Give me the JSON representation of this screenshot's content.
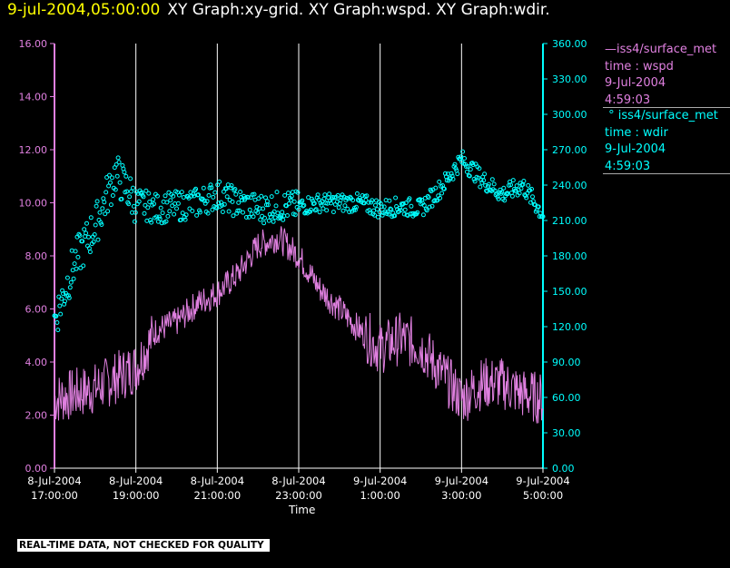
{
  "header": {
    "timestamp": "9-jul-2004,05:00:00",
    "titles": "XY Graph:xy-grid.  XY Graph:wspd.  XY Graph:wdir."
  },
  "legend": {
    "wspd": {
      "line1": "iss4/surface_met",
      "line2": "time : wspd",
      "line3": "9-Jul-2004",
      "line4": "4:59:03"
    },
    "wdir": {
      "line1": "iss4/surface_met",
      "line2": "time : wdir",
      "line3": "9-Jul-2004",
      "line4": "4:59:03"
    }
  },
  "quality_note": "REAL-TIME DATA, NOT CHECKED FOR QUALITY",
  "colors": {
    "wspd": "#e080e0",
    "wdir": "#00ffff",
    "grid": "#ffffff",
    "header_timestamp": "#ffff00"
  },
  "chart_data": {
    "type": "line",
    "xlabel": "Time",
    "x_ticks": [
      {
        "date": "8-Jul-2004",
        "time": "17:00:00",
        "hours": 0
      },
      {
        "date": "8-Jul-2004",
        "time": "19:00:00",
        "hours": 2
      },
      {
        "date": "8-Jul-2004",
        "time": "21:00:00",
        "hours": 4
      },
      {
        "date": "8-Jul-2004",
        "time": "23:00:00",
        "hours": 6
      },
      {
        "date": "9-Jul-2004",
        "time": "1:00:00",
        "hours": 8
      },
      {
        "date": "9-Jul-2004",
        "time": "3:00:00",
        "hours": 10
      },
      {
        "date": "9-Jul-2004",
        "time": "5:00:00",
        "hours": 12
      }
    ],
    "xlim": [
      "8-Jul-2004 17:00:00",
      "9-Jul-2004 05:00:00"
    ],
    "y_left": {
      "ylim": [
        0,
        16
      ],
      "ticks": [
        "0.00",
        "2.00",
        "4.00",
        "6.00",
        "8.00",
        "10.00",
        "12.00",
        "14.00",
        "16.00"
      ]
    },
    "y_right": {
      "ylim": [
        0,
        360
      ],
      "ticks": [
        "0.00",
        "30.00",
        "60.00",
        "90.00",
        "120.00",
        "150.00",
        "180.00",
        "210.00",
        "240.00",
        "270.00",
        "300.00",
        "330.00",
        "360.00"
      ]
    },
    "grid": "vertical",
    "series": [
      {
        "name": "iss4/surface_met time : wspd",
        "axis": "left",
        "style": "line",
        "x": [
          "8-Jul-2004 17:00",
          "8-Jul-2004 17:30",
          "8-Jul-2004 18:00",
          "8-Jul-2004 18:30",
          "8-Jul-2004 19:00",
          "8-Jul-2004 19:30",
          "8-Jul-2004 20:00",
          "8-Jul-2004 20:30",
          "8-Jul-2004 21:00",
          "8-Jul-2004 21:30",
          "8-Jul-2004 22:00",
          "8-Jul-2004 22:30",
          "8-Jul-2004 23:00",
          "8-Jul-2004 23:30",
          "9-Jul-2004 00:00",
          "9-Jul-2004 00:30",
          "9-Jul-2004 01:00",
          "9-Jul-2004 01:30",
          "9-Jul-2004 02:00",
          "9-Jul-2004 02:30",
          "9-Jul-2004 03:00",
          "9-Jul-2004 03:30",
          "9-Jul-2004 04:00",
          "9-Jul-2004 04:30",
          "9-Jul-2004 05:00"
        ],
        "values": [
          2.6,
          2.8,
          3.0,
          3.4,
          3.8,
          5.2,
          5.5,
          6.2,
          6.6,
          7.3,
          8.4,
          8.7,
          8.0,
          6.8,
          6.0,
          5.2,
          4.5,
          4.9,
          4.6,
          3.6,
          2.6,
          3.2,
          3.2,
          2.8,
          2.6
        ]
      },
      {
        "name": "iss4/surface_met time : wdir",
        "axis": "right",
        "style": "scatter",
        "x": [
          "8-Jul-2004 17:00",
          "8-Jul-2004 17:15",
          "8-Jul-2004 17:30",
          "8-Jul-2004 18:00",
          "8-Jul-2004 18:30",
          "8-Jul-2004 19:00",
          "8-Jul-2004 19:30",
          "8-Jul-2004 20:00",
          "8-Jul-2004 20:30",
          "8-Jul-2004 21:00",
          "8-Jul-2004 21:30",
          "8-Jul-2004 22:00",
          "8-Jul-2004 22:30",
          "8-Jul-2004 23:00",
          "8-Jul-2004 23:30",
          "9-Jul-2004 00:00",
          "9-Jul-2004 00:30",
          "9-Jul-2004 01:00",
          "9-Jul-2004 01:30",
          "9-Jul-2004 02:00",
          "9-Jul-2004 02:30",
          "9-Jul-2004 03:00",
          "9-Jul-2004 03:30",
          "9-Jul-2004 04:00",
          "9-Jul-2004 04:30",
          "9-Jul-2004 05:00"
        ],
        "values": [
          125,
          150,
          175,
          205,
          250,
          225,
          220,
          222,
          225,
          232,
          225,
          220,
          222,
          222,
          225,
          225,
          225,
          220,
          222,
          220,
          238,
          262,
          245,
          232,
          240,
          215
        ]
      }
    ]
  }
}
